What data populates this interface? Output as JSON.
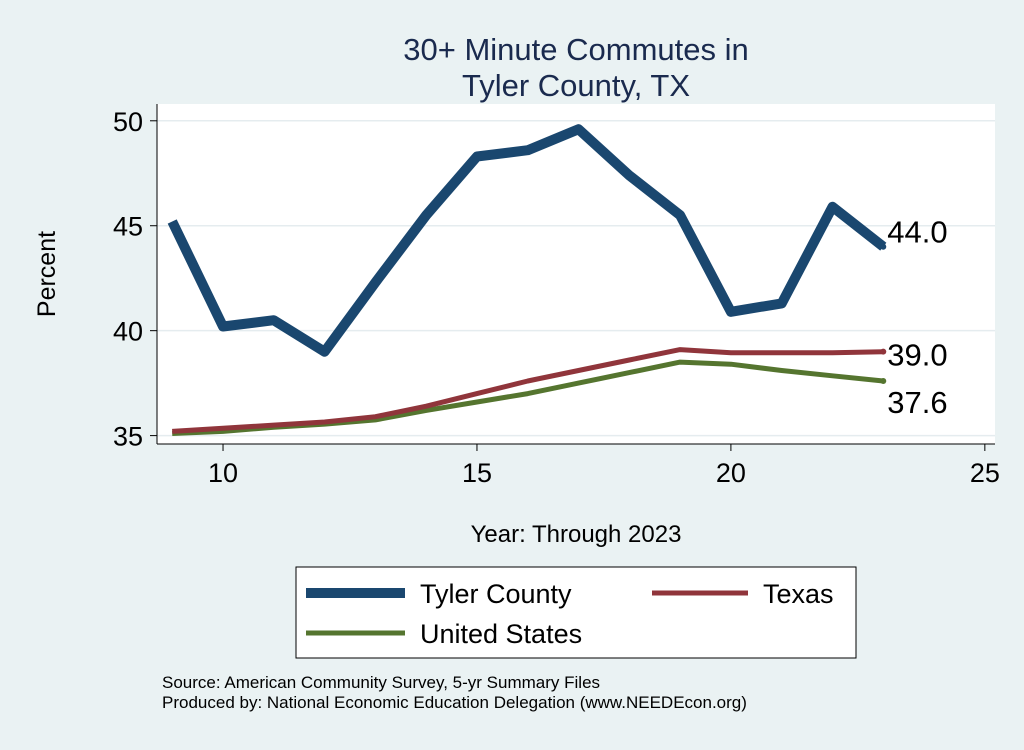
{
  "chart_data": {
    "type": "line",
    "title_lines": [
      "30+ Minute Commutes in",
      "Tyler County, TX"
    ],
    "xlabel": "Year: Through 2023",
    "ylabel": "Percent",
    "xlim": [
      8.7,
      25.2
    ],
    "ylim": [
      34.6,
      50.8
    ],
    "x_ticks": [
      10,
      15,
      20,
      25
    ],
    "y_ticks": [
      35,
      40,
      45,
      50
    ],
    "grid": true,
    "series": [
      {
        "name": "Tyler County",
        "color": "#1a476f",
        "x": [
          9,
          10,
          11,
          12,
          13,
          14,
          15,
          16,
          17,
          18,
          19,
          20,
          21,
          22,
          23
        ],
        "values": [
          45.2,
          40.2,
          40.5,
          39.0,
          42.3,
          45.5,
          48.3,
          48.6,
          49.6,
          47.4,
          45.5,
          40.9,
          41.3,
          45.9,
          44.0
        ],
        "end_label": "44.0"
      },
      {
        "name": "Texas",
        "color": "#90353b",
        "x": [
          9,
          10,
          11,
          12,
          13,
          14,
          15,
          16,
          17,
          18,
          19,
          20,
          21,
          22,
          23
        ],
        "values": [
          35.2,
          35.35,
          35.5,
          35.65,
          35.9,
          36.4,
          37.0,
          37.6,
          38.1,
          38.6,
          39.1,
          38.95,
          38.95,
          38.95,
          39.0
        ],
        "end_label": "39.0"
      },
      {
        "name": "United States",
        "color": "#55752f",
        "x": [
          9,
          10,
          11,
          12,
          13,
          14,
          15,
          16,
          17,
          18,
          19,
          20,
          21,
          22,
          23
        ],
        "values": [
          35.1,
          35.2,
          35.4,
          35.55,
          35.75,
          36.2,
          36.6,
          37.0,
          37.5,
          38.0,
          38.5,
          38.4,
          38.1,
          37.85,
          37.6
        ],
        "end_label": "37.6"
      }
    ],
    "legend_position": "bottom",
    "source_lines": [
      "Source: American Community Survey, 5-yr Summary Files",
      "Produced by: National Economic Education Delegation (www.NEEDEcon.org)"
    ]
  }
}
